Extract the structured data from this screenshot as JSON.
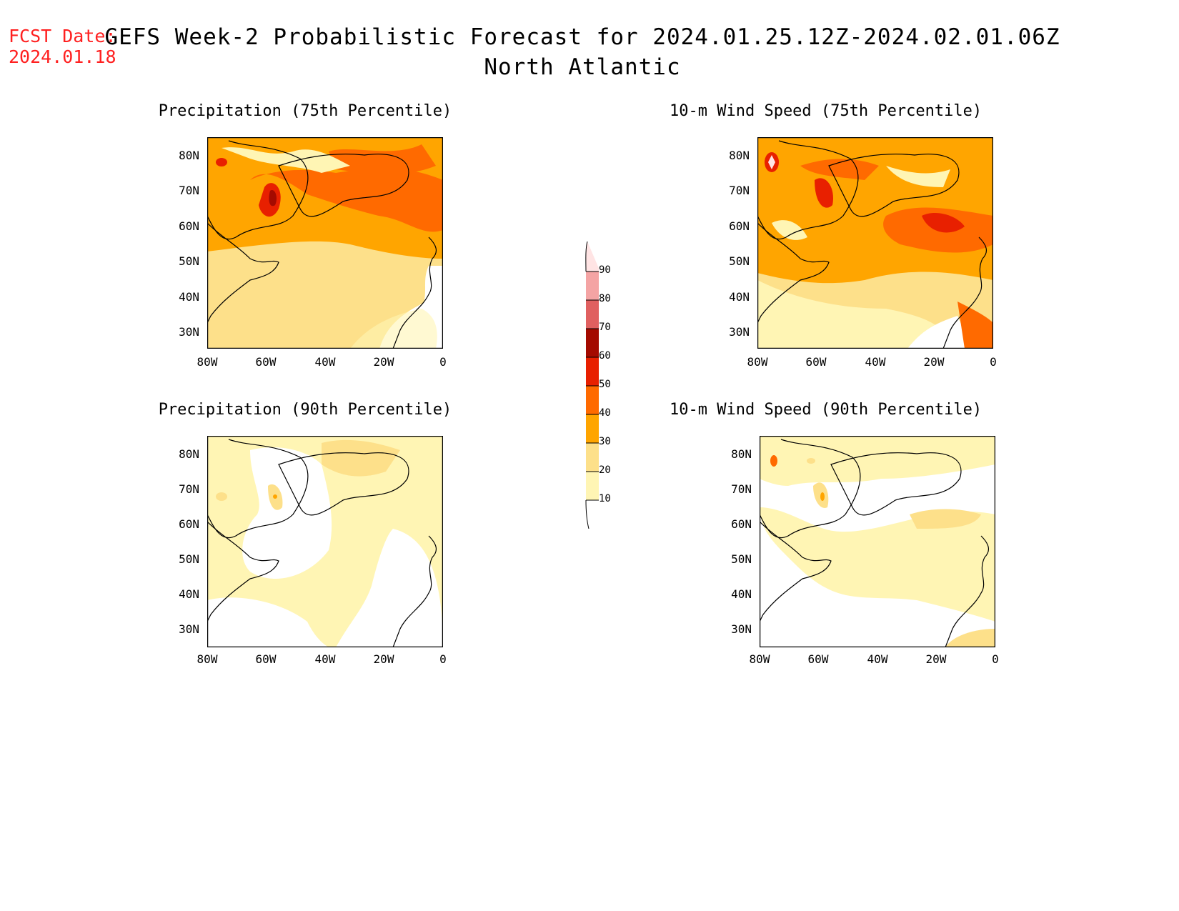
{
  "forecast_date": {
    "label": "FCST Date:",
    "value": "2024.01.18"
  },
  "title": "GEFS Week-2 Probabilistic Forecast for 2024.01.25.12Z-2024.02.01.06Z",
  "subtitle": "North Atlantic",
  "colors": {
    "c10": "#ffffff",
    "c20": "#fff5b4",
    "c30": "#fde08a",
    "c40": "#ffa500",
    "c50": "#ff6a00",
    "c60": "#e82000",
    "c70": "#a40a00",
    "c80": "#e06060",
    "c90": "#f4a4a4",
    "c100": "#ffe4e4"
  },
  "panels": [
    {
      "title": "Precipitation (75th Percentile)",
      "lat_ticks": [
        "80N",
        "70N",
        "60N",
        "50N",
        "40N",
        "30N"
      ],
      "lon_ticks": [
        "80W",
        "60W",
        "40W",
        "20W",
        "0"
      ]
    },
    {
      "title": "10-m Wind Speed (75th Percentile)",
      "lat_ticks": [
        "80N",
        "70N",
        "60N",
        "50N",
        "40N",
        "30N"
      ],
      "lon_ticks": [
        "80W",
        "60W",
        "40W",
        "20W",
        "0"
      ]
    },
    {
      "title": "Precipitation (90th Percentile)",
      "lat_ticks": [
        "80N",
        "70N",
        "60N",
        "50N",
        "40N",
        "30N"
      ],
      "lon_ticks": [
        "80W",
        "60W",
        "40W",
        "20W",
        "0"
      ]
    },
    {
      "title": "10-m Wind Speed (90th Percentile)",
      "lat_ticks": [
        "80N",
        "70N",
        "60N",
        "50N",
        "40N",
        "30N"
      ],
      "lon_ticks": [
        "80W",
        "60W",
        "40W",
        "20W",
        "0"
      ]
    }
  ],
  "colorbar": {
    "labels": [
      "90",
      "80",
      "70",
      "60",
      "50",
      "40",
      "30",
      "20",
      "10"
    ]
  }
}
